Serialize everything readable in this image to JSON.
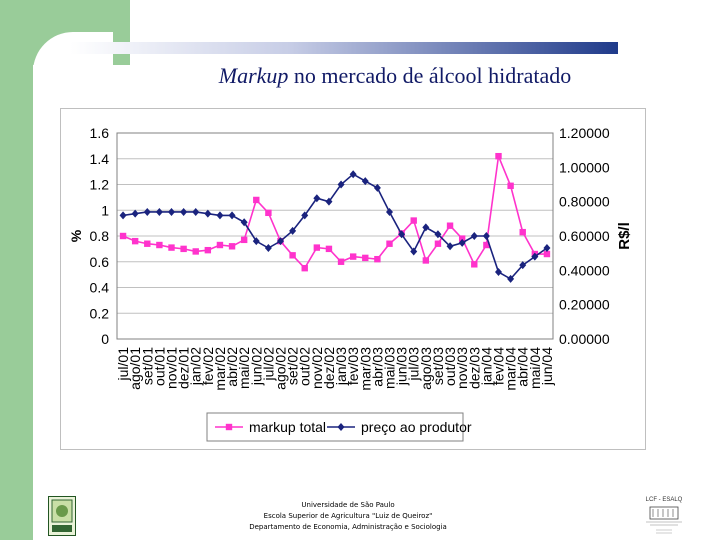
{
  "slide": {
    "title_italic": "Markup",
    "title_rest": " no mercado de álcool hidratado"
  },
  "footer": {
    "line1": "Universidade de São Paulo",
    "line2": "Escola Superior de Agricultura \"Luiz de Queiroz\"",
    "line3": "Departamento de Economia, Administração e Sociologia"
  },
  "logos": {
    "left_text": "EsaLQ",
    "right_text": "LCF - ESALQ"
  },
  "colors": {
    "band": "#99cc99",
    "title": "#111a66",
    "markup": "#ff33cc",
    "price": "#1a237e",
    "grid": "#c0c0c0"
  },
  "chart_data": {
    "type": "line",
    "categories": [
      "jul/01",
      "ago/01",
      "set/01",
      "out/01",
      "nov/01",
      "dez/01",
      "jan/02",
      "fev/02",
      "mar/02",
      "abr/02",
      "mai/02",
      "jun/02",
      "jul/02",
      "ago/02",
      "set/02",
      "out/02",
      "nov/02",
      "dez/02",
      "jan/03",
      "fev/03",
      "mar/03",
      "abr/03",
      "mai/03",
      "jun/03",
      "jul/03",
      "ago/03",
      "set/03",
      "out/03",
      "nov/03",
      "dez/03",
      "jan/04",
      "fev/04",
      "mar/04",
      "abr/04",
      "mai/04",
      "jun/04"
    ],
    "ylabel": "%",
    "y2label": "R$/l",
    "ylim": [
      0,
      1.6
    ],
    "y2lim": [
      0,
      1.2
    ],
    "yticks": [
      "0",
      "0.2",
      "0.4",
      "0.6",
      "0.8",
      "1",
      "1.2",
      "1.4",
      "1.6"
    ],
    "y2ticks": [
      "0.00000",
      "0.20000",
      "0.40000",
      "0.60000",
      "0.80000",
      "1.00000",
      "1.20000"
    ],
    "grid": true,
    "legend_position": "bottom",
    "series": [
      {
        "name": "markup total",
        "axis": "left",
        "color": "#ff33cc",
        "marker": "square",
        "values": [
          0.8,
          0.76,
          0.74,
          0.73,
          0.71,
          0.7,
          0.68,
          0.69,
          0.73,
          0.72,
          0.77,
          1.08,
          0.98,
          0.76,
          0.65,
          0.55,
          0.71,
          0.7,
          0.6,
          0.64,
          0.63,
          0.62,
          0.74,
          0.82,
          0.92,
          0.61,
          0.74,
          0.88,
          0.78,
          0.58,
          0.73,
          1.42,
          1.19,
          0.83,
          0.66,
          0.66
        ]
      },
      {
        "name": "preço ao produtor",
        "axis": "right",
        "color": "#1a237e",
        "marker": "diamond",
        "values": [
          0.72,
          0.73,
          0.74,
          0.74,
          0.74,
          0.74,
          0.74,
          0.73,
          0.72,
          0.72,
          0.68,
          0.57,
          0.53,
          0.57,
          0.63,
          0.72,
          0.82,
          0.8,
          0.9,
          0.96,
          0.92,
          0.88,
          0.74,
          0.61,
          0.51,
          0.65,
          0.61,
          0.54,
          0.56,
          0.6,
          0.6,
          0.39,
          0.35,
          0.43,
          0.48,
          0.53
        ]
      }
    ]
  }
}
